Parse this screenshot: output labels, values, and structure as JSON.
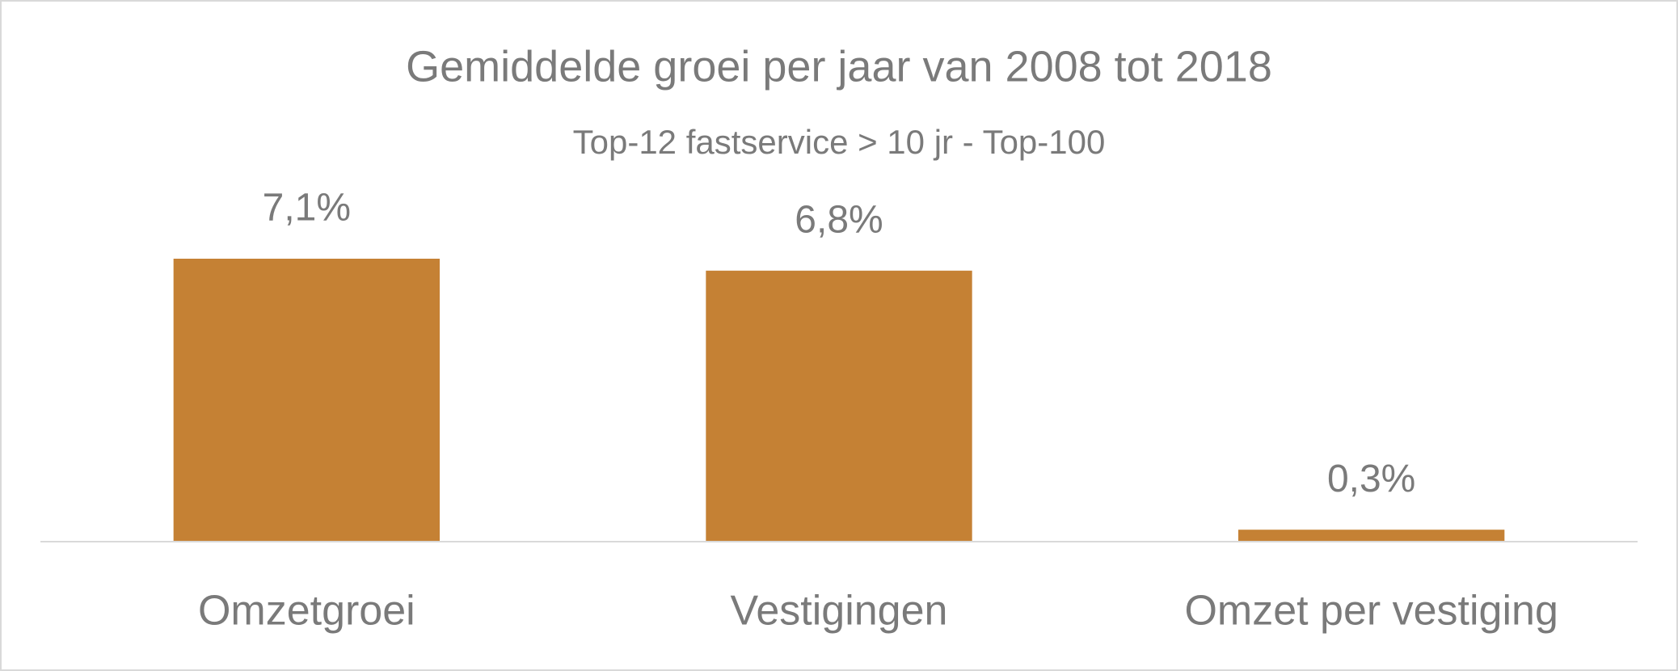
{
  "chart_data": {
    "type": "bar",
    "title": "Gemiddelde groei per jaar van 2008 tot 2018",
    "subtitle": "Top-12 fastservice > 10 jr - Top-100",
    "categories": [
      "Omzetgroei",
      "Vestigingen",
      "Omzet per vestiging"
    ],
    "values": [
      7.1,
      6.8,
      0.3
    ],
    "value_labels": [
      "7,1%",
      "6,8%",
      "0,3%"
    ],
    "color": "#c58134"
  }
}
